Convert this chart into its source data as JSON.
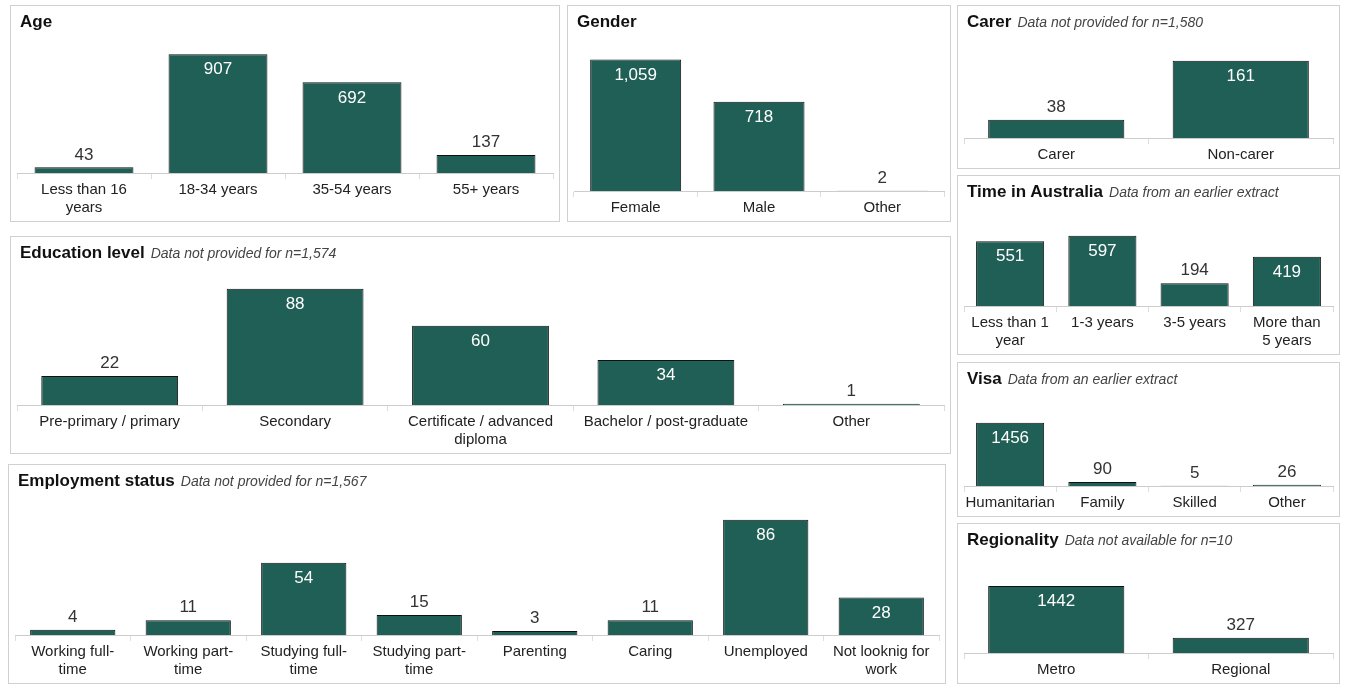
{
  "chart_data": [
    {
      "type": "bar",
      "title": "Age",
      "categories": [
        "Less than 16 years",
        "18-34 years",
        "35-54 years",
        "55+ years"
      ],
      "values": [
        43,
        907,
        692,
        137
      ],
      "value_labels": [
        "43",
        "907",
        "692",
        "137"
      ],
      "color": "#1f5f55"
    },
    {
      "type": "bar",
      "title": "Gender",
      "categories": [
        "Female",
        "Male",
        "Other"
      ],
      "values": [
        1059,
        718,
        2
      ],
      "value_labels": [
        "1,059",
        "718",
        "2"
      ],
      "color": "#1f5f55"
    },
    {
      "type": "bar",
      "title": "Carer",
      "subtitle": "Data not provided for n=1,580",
      "categories": [
        "Carer",
        "Non-carer"
      ],
      "values": [
        38,
        161
      ],
      "value_labels": [
        "38",
        "161"
      ],
      "color": "#1f5f55"
    },
    {
      "type": "bar",
      "title": "Education level",
      "subtitle": "Data not provided for n=1,574",
      "categories": [
        "Pre-primary / primary",
        "Secondary",
        "Certificate / advanced diploma",
        "Bachelor / post-graduate",
        "Other"
      ],
      "values": [
        22,
        88,
        60,
        34,
        1
      ],
      "value_labels": [
        "22",
        "88",
        "60",
        "34",
        "1"
      ],
      "color": "#1f5f55"
    },
    {
      "type": "bar",
      "title": "Time in Australia",
      "subtitle": "Data from an earlier extract",
      "categories": [
        "Less than 1 year",
        "1-3 years",
        "3-5 years",
        "More than 5 years"
      ],
      "values": [
        551,
        597,
        194,
        419
      ],
      "value_labels": [
        "551",
        "597",
        "194",
        "419"
      ],
      "color": "#1f5f55"
    },
    {
      "type": "bar",
      "title": "Visa",
      "subtitle": "Data from an earlier extract",
      "categories": [
        "Humanitarian",
        "Family",
        "Skilled",
        "Other"
      ],
      "values": [
        1456,
        90,
        5,
        26
      ],
      "value_labels": [
        "1456",
        "90",
        "5",
        "26"
      ],
      "color": "#1f5f55"
    },
    {
      "type": "bar",
      "title": "Employment status",
      "subtitle": "Data not provided for n=1,567",
      "categories": [
        "Working full-time",
        "Working part-time",
        "Studying full-time",
        "Studying part-time",
        "Parenting",
        "Caring",
        "Unemployed",
        "Not looknig for work"
      ],
      "values": [
        4,
        11,
        54,
        15,
        3,
        11,
        86,
        28
      ],
      "value_labels": [
        "4",
        "11",
        "54",
        "15",
        "3",
        "11",
        "86",
        "28"
      ],
      "color": "#1f5f55"
    },
    {
      "type": "bar",
      "title": "Regionality",
      "subtitle": "Data not available for n=10",
      "categories": [
        "Metro",
        "Regional"
      ],
      "values": [
        1442,
        327
      ],
      "value_labels": [
        "1442",
        "327"
      ],
      "color": "#1f5f55"
    }
  ]
}
